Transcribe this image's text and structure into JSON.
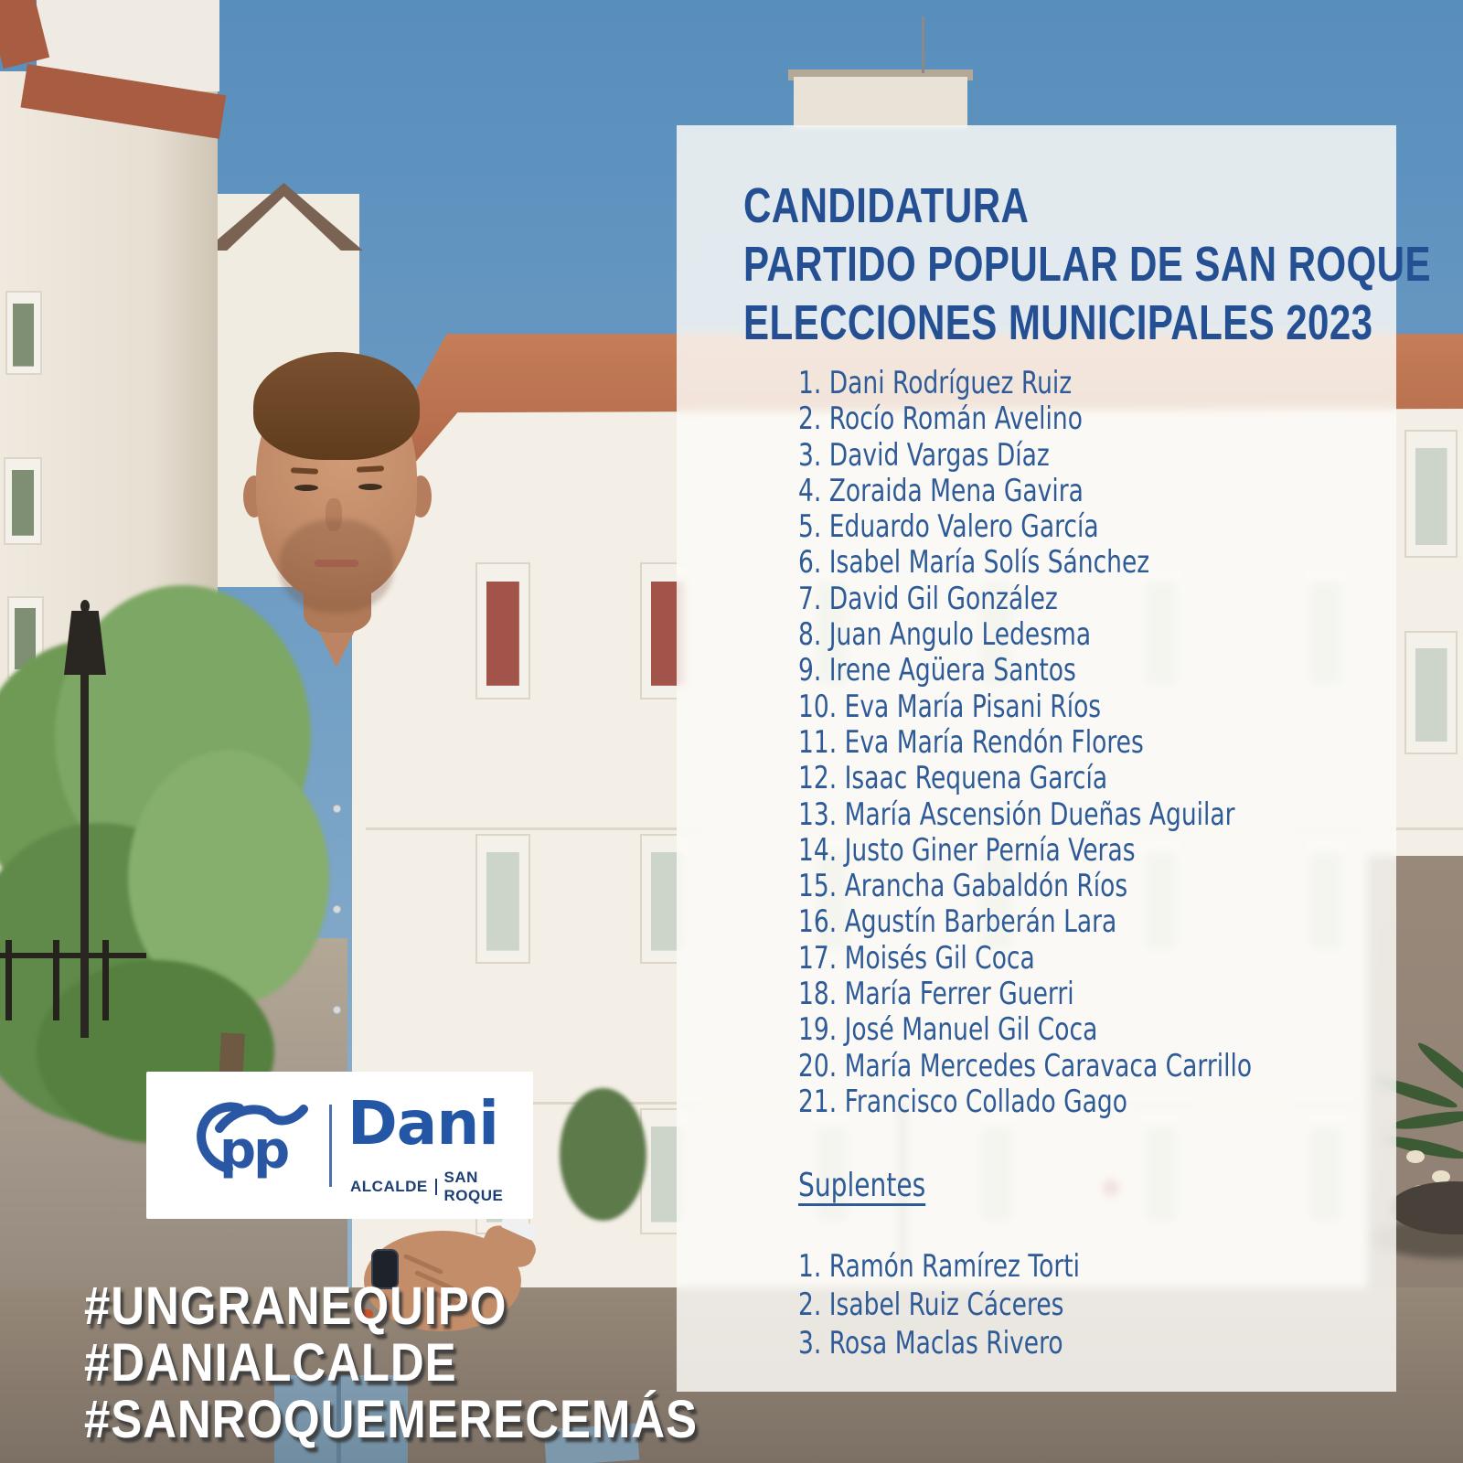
{
  "title_lines": [
    "CANDIDATURA",
    "PARTIDO POPULAR DE SAN ROQUE",
    "ELECCIONES MUNICIPALES 2023"
  ],
  "candidates": [
    "1. Dani Rodríguez Ruiz",
    "2. Rocío Román Avelino",
    "3. David Vargas Díaz",
    "4. Zoraida Mena Gavira",
    "5. Eduardo Valero García",
    "6. Isabel María Solís Sánchez",
    "7. David Gil González",
    "8. Juan Angulo Ledesma",
    "9. Irene Agüera Santos",
    "10. Eva María Pisani Ríos",
    "11. Eva María Rendón Flores",
    "12. Isaac Requena García",
    "13. María Ascensión Dueñas Aguilar",
    "14. Justo Giner Pernía Veras",
    "15. Arancha Gabaldón Ríos",
    "16. Agustín Barberán Lara",
    "17. Moisés Gil Coca",
    "18. María Ferrer Guerri",
    "19. José Manuel Gil Coca",
    "20. María Mercedes Caravaca Carrillo",
    "21. Francisco Collado Gago"
  ],
  "suplentes": {
    "title": "Suplentes",
    "items": [
      "1. Ramón Ramírez Torti",
      "2. Isabel Ruiz Cáceres",
      "3. Rosa Maclas Rivero"
    ]
  },
  "hashtags": [
    "#UNGRANEQUIPO",
    "#DANIALCALDE",
    "#SANROQUEMERECEMÁS"
  ],
  "logo": {
    "pp": "pp",
    "name": "Dani",
    "subtitle_left": "ALCALDE",
    "subtitle_right": "SAN ROQUE"
  },
  "colors": {
    "title_blue": "#254f93",
    "list_blue": "#2e5b97",
    "logo_blue": "#2456a6",
    "logo_dark_blue": "#1d3e74",
    "hashtag_white": "#ffffff"
  }
}
